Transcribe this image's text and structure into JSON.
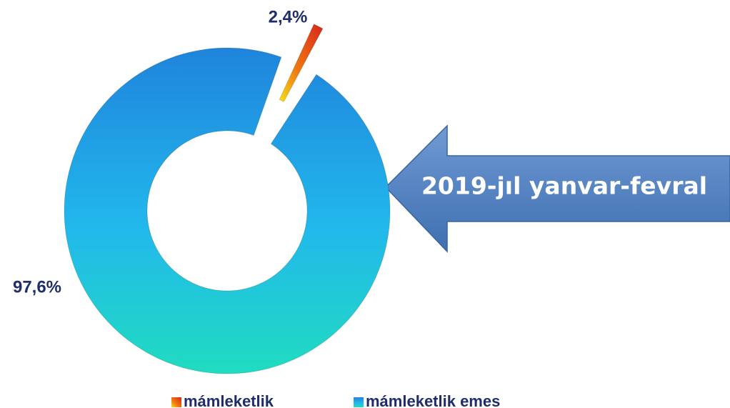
{
  "chart_data": {
    "type": "pie",
    "categories": [
      "mámleketlik",
      "mámleketlik emes"
    ],
    "values": [
      2.4,
      97.6
    ],
    "value_labels": [
      "2,4%",
      "97,6%"
    ],
    "colors": [
      "#d8261a",
      "#1f84dc"
    ],
    "annotation": "2019-jıl yanvar-fevral",
    "legend": "bottom"
  }
}
